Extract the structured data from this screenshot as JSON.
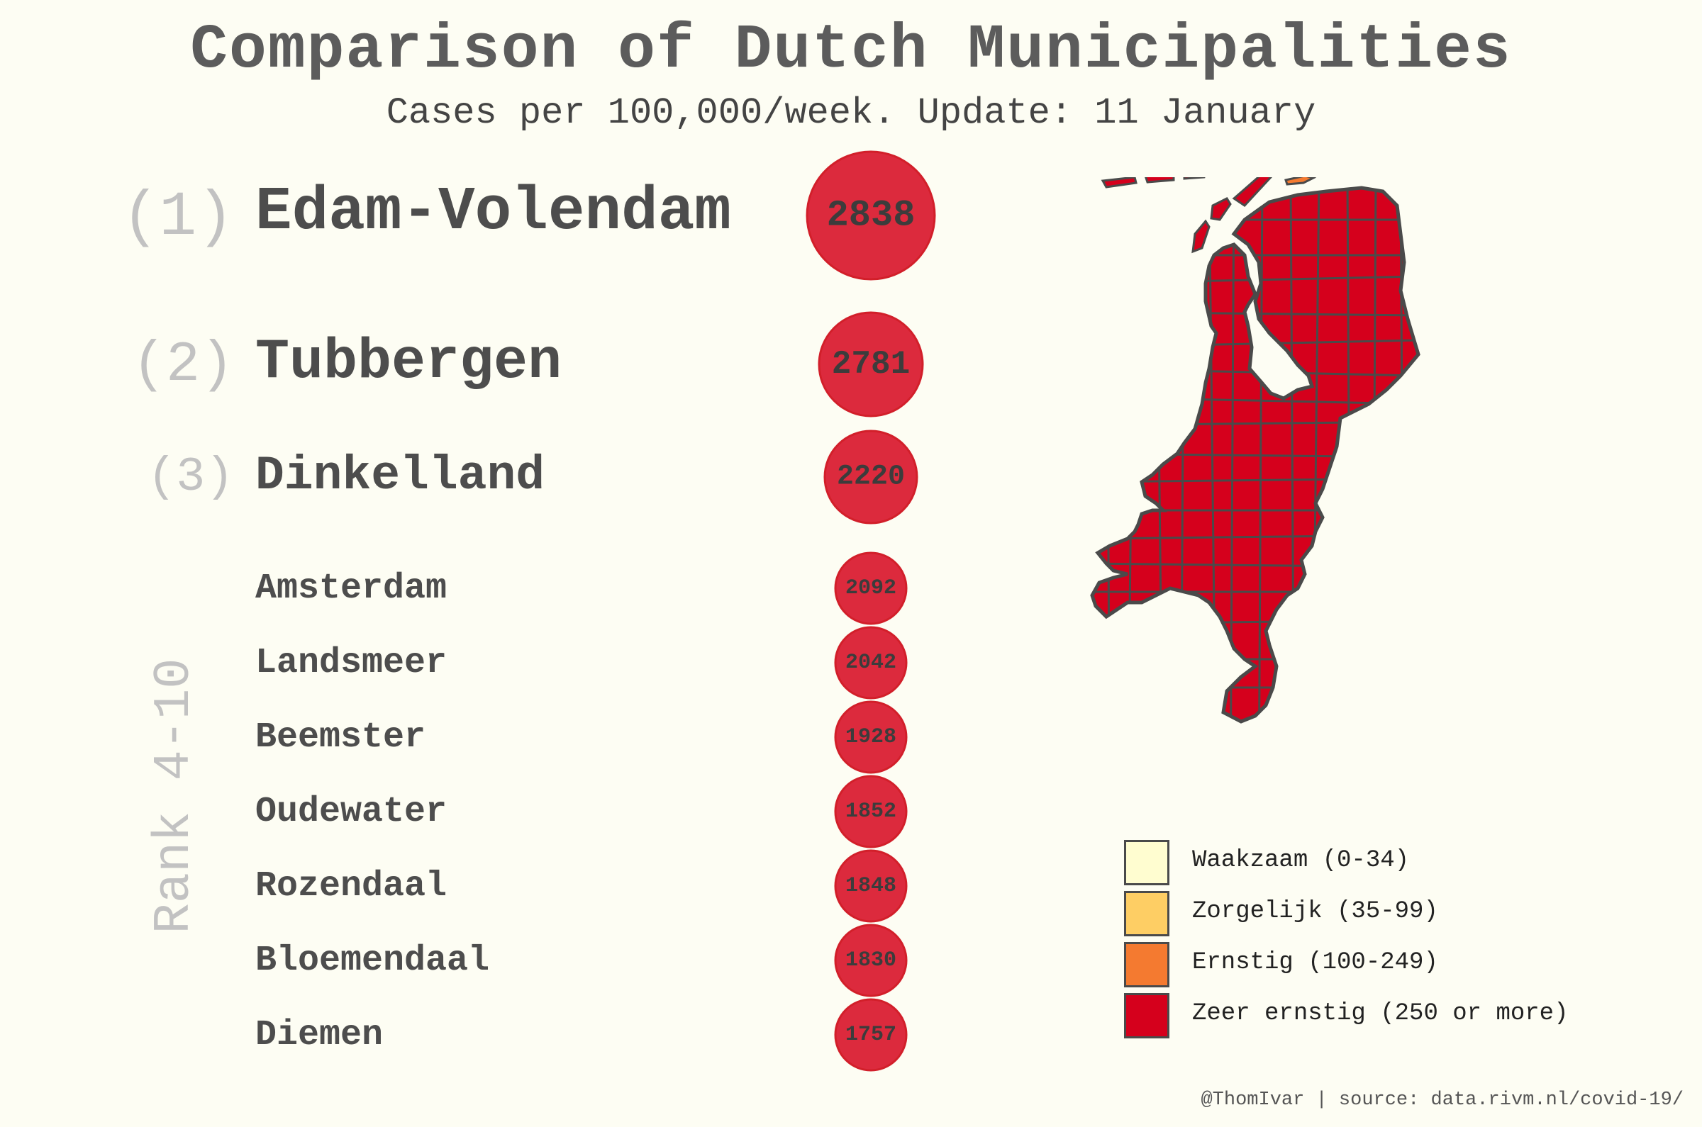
{
  "title": "Comparison of Dutch Municipalities",
  "subtitle": "Cases per 100,000/week. Update: 11 January",
  "rank_group_label": "Rank 4-10",
  "footer": "@ThomIvar | source: data.rivm.nl/covid-19/",
  "colors": {
    "bubble": "#dc2a3d",
    "bubble_border": "#d21f2a",
    "map_fill": "#d5001c",
    "map_border": "#4a4a4a",
    "orange_island": "#f47a30"
  },
  "chart_data": {
    "type": "bubble",
    "title": "Comparison of Dutch Municipalities",
    "subtitle": "Cases per 100,000/week. Update: 11 January",
    "categories": [
      "Edam-Volendam",
      "Tubbergen",
      "Dinkelland",
      "Amsterdam",
      "Landsmeer",
      "Beemster",
      "Oudewater",
      "Rozendaal",
      "Bloemendaal",
      "Diemen"
    ],
    "ranks": [
      "(1)",
      "(2)",
      "(3)"
    ],
    "values": [
      2838,
      2781,
      2220,
      2092,
      2042,
      1928,
      1852,
      1848,
      1830,
      1757
    ],
    "labels": [
      "2838",
      "2781",
      "2220",
      "2092",
      "2042",
      "1928",
      "1852",
      "1848",
      "1830",
      "1757"
    ]
  },
  "legend": [
    {
      "label": "Waakzaam (0-34)",
      "color": "#fffdd0"
    },
    {
      "label": "Zorgelijk (35-99)",
      "color": "#fece64"
    },
    {
      "label": "Ernstig (100-249)",
      "color": "#f47a30"
    },
    {
      "label": "Zeer ernstig (250 or more)",
      "color": "#d5001c"
    }
  ]
}
